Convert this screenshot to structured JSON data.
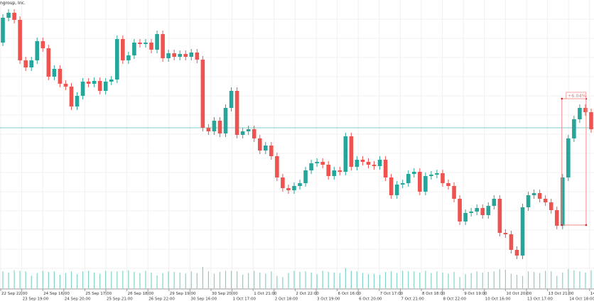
{
  "chart_data": {
    "type": "candlestick",
    "title": "ngroup, Inc.",
    "colors": {
      "up": "#26a69a",
      "down": "#ef5350",
      "volume": "#7fd3c8",
      "hline": "#80cbc4",
      "measure": "#f28b8b",
      "grid": "#f0f0f0"
    },
    "first_open": 340,
    "close": [
      375,
      382,
      372,
      315,
      305,
      315,
      342,
      332,
      292,
      303,
      282,
      278,
      250,
      265,
      285,
      282,
      286,
      272,
      285,
      288,
      345,
      315,
      322,
      340,
      338,
      340,
      330,
      352,
      318,
      325,
      320,
      324,
      320,
      326,
      316,
      220,
      215,
      230,
      212,
      248,
      272,
      210,
      215,
      218,
      205,
      188,
      195,
      180,
      150,
      135,
      132,
      138,
      142,
      160,
      170,
      172,
      168,
      152,
      160,
      158,
      208,
      165,
      175,
      172,
      168,
      166,
      175,
      150,
      125,
      140,
      142,
      155,
      158,
      130,
      152,
      154,
      156,
      142,
      138,
      120,
      88,
      100,
      102,
      107,
      97,
      110,
      120,
      72,
      70,
      48,
      40,
      108,
      125,
      128,
      120,
      115,
      104,
      82,
      150,
      205,
      232,
      248,
      242,
      218
    ],
    "volume": [
      30,
      28,
      32,
      31,
      30,
      22,
      27,
      31,
      29,
      30,
      24,
      27,
      30,
      25,
      30,
      31,
      28,
      26,
      31,
      30,
      30,
      31,
      32,
      29,
      27,
      31,
      28,
      23,
      27,
      30,
      29,
      28,
      26,
      30,
      27,
      38,
      30,
      26,
      29,
      31,
      31,
      30,
      24,
      27,
      31,
      28,
      26,
      30,
      22,
      20,
      27,
      31,
      29,
      30,
      28,
      25,
      31,
      29,
      28,
      27,
      36,
      31,
      30,
      27,
      25,
      26,
      24,
      29,
      30,
      27,
      31,
      30,
      30,
      28,
      31,
      27,
      30,
      28,
      26,
      29,
      20,
      25,
      27,
      30,
      28,
      29,
      30,
      34,
      33,
      26,
      24,
      22,
      30,
      29,
      27,
      31,
      30,
      22,
      28,
      34,
      32,
      30,
      28,
      32
    ],
    "reference_line": 220,
    "measurement": {
      "label": "+6.04%"
    },
    "x_tick_labels": [
      "22 Sep 22:00",
      "23 Sep 19:00",
      "24 Sep 16:00",
      "24 Sep 20:00",
      "25 Sep 17:00",
      "25 Sep 21:00",
      "26 Sep 18:00",
      "26 Sep 22:00",
      "29 Sep 19:00",
      "30 Sep 16:00",
      "30 Sep 20:00",
      "1 Oct 17:00",
      "1 Oct 21:00",
      "2 Oct 18:00",
      "2 Oct 22:00",
      "3 Oct 19:00",
      "6 Oct 16:00",
      "6 Oct 20:00",
      "7 Oct 17:00",
      "7 Oct 21:00",
      "8 Oct 18:00",
      "8 Oct 22:00",
      "9 Oct 19:00",
      "10 Oct 16:00",
      "10 Oct 20:00",
      "13 Oct 17:00",
      "13 Oct 21:00",
      "14 Oct 18:00",
      "14"
    ],
    "grid": true,
    "legend": "none"
  }
}
